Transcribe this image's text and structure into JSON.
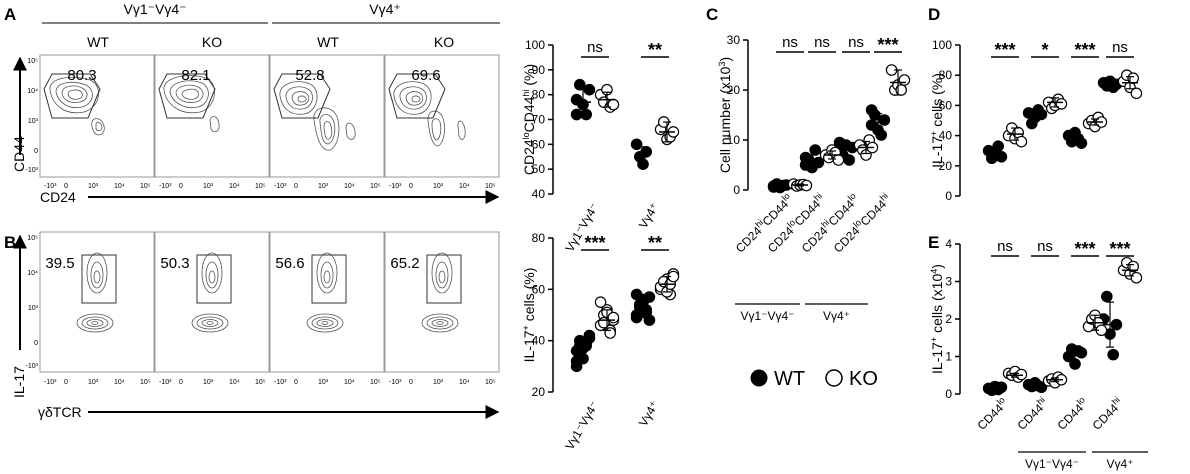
{
  "panel_labels": [
    "A",
    "B",
    "C",
    "D",
    "E"
  ],
  "flow_a": {
    "group_labels": [
      "Vγ1⁻Vγ4⁻",
      "Vγ4⁺"
    ],
    "genotype_labels": [
      "WT",
      "KO",
      "WT",
      "KO"
    ],
    "percentages": [
      "80.3",
      "82.1",
      "52.8",
      "69.6"
    ],
    "y_axis": "CD44",
    "x_axis": "CD24",
    "y_ticks": [
      "10⁵",
      "10⁴",
      "10³",
      "0",
      "-10³"
    ],
    "x_ticks": [
      "-10³",
      "0",
      "10³",
      "10⁴",
      "10⁵"
    ]
  },
  "flow_b": {
    "percentages": [
      "39.5",
      "50.3",
      "56.6",
      "65.2"
    ],
    "y_axis": "IL-17",
    "x_axis": "γδTCR",
    "y_ticks": [
      "10⁵",
      "10⁴",
      "10³",
      "0",
      "-10³"
    ],
    "x_ticks": [
      "-10³",
      "0",
      "10³",
      "10⁴",
      "10⁵"
    ]
  },
  "legend": {
    "wt": "WT",
    "ko": "KO"
  },
  "chart_data": [
    {
      "id": "A-scatter",
      "type": "scatter",
      "ylabel": "CD24loCD44hi (%)",
      "ylabel_parts": [
        "CD24",
        "lo",
        "CD44",
        "hi",
        " (%)"
      ],
      "ylim": [
        40,
        100
      ],
      "yticks": [
        "40",
        "50",
        "60",
        "70",
        "80",
        "90",
        "100"
      ],
      "groups": [
        "Vγ1⁻Vγ4⁻",
        "Vγ4⁺"
      ],
      "significance": [
        "ns",
        "**"
      ],
      "series": [
        {
          "name": "WT",
          "values": [
            [
              78,
              84,
              76,
              72,
              82,
              72
            ],
            [
              60,
              55,
              52,
              57
            ]
          ],
          "mean": [
            77,
            56
          ],
          "sd": [
            5,
            3
          ]
        },
        {
          "name": "KO",
          "values": [
            [
              80,
              77,
              82,
              75,
              76
            ],
            [
              66,
              69,
              62,
              63,
              65
            ]
          ],
          "mean": [
            78,
            65
          ],
          "sd": [
            3,
            4
          ]
        }
      ]
    },
    {
      "id": "B-scatter",
      "type": "scatter",
      "ylabel": "IL-17+ cells (%)",
      "ylabel_parts": [
        "IL-17",
        "+",
        " cells (%)",
        "",
        ""
      ],
      "ylim": [
        20,
        80
      ],
      "yticks": [
        "20",
        "40",
        "60",
        "80"
      ],
      "groups": [
        "Vγ1⁻Vγ4⁻",
        "Vγ4⁺"
      ],
      "significance": [
        "***",
        "**"
      ],
      "series": [
        {
          "name": "WT",
          "values": [
            [
              36,
              40,
              33,
              38,
              42,
              30,
              35,
              37,
              39,
              41,
              32,
              38
            ],
            [
              50,
              54,
              56,
              52,
              48,
              58,
              53,
              55,
              51,
              57,
              49,
              54
            ]
          ],
          "mean": [
            37,
            53
          ],
          "sd": [
            4,
            4
          ]
        },
        {
          "name": "KO",
          "values": [
            [
              46,
              50,
              52,
              44,
              48,
              55,
              47,
              51,
              43,
              49
            ],
            [
              60,
              62,
              64,
              58,
              66,
              61,
              63,
              59,
              62,
              65
            ]
          ],
          "mean": [
            48,
            62
          ],
          "sd": [
            4,
            3
          ]
        }
      ]
    },
    {
      "id": "C-scatter",
      "type": "scatter",
      "ylabel": "Cell number (x10³)",
      "ylabel_parts": [
        "Cell number (x10",
        "3",
        ")",
        "",
        ""
      ],
      "ylim": [
        0,
        30
      ],
      "yticks": [
        "0",
        "10",
        "20",
        "30"
      ],
      "categories": [
        "CD24hiCD44lo",
        "CD24loCD44hi",
        "CD24hiCD44lo",
        "CD24loCD44hi"
      ],
      "category_parts": [
        [
          "CD24",
          "hi",
          "CD44",
          "lo"
        ],
        [
          "CD24",
          "lo",
          "CD44",
          "hi"
        ],
        [
          "CD24",
          "hi",
          "CD44",
          "lo"
        ],
        [
          "CD24",
          "lo",
          "CD44",
          "hi"
        ]
      ],
      "groups": [
        "Vγ1⁻Vγ4⁻",
        "Vγ4⁺"
      ],
      "significance": [
        "ns",
        "ns",
        "ns",
        "***"
      ],
      "series": [
        {
          "name": "WT",
          "values": [
            [
              0.8,
              1.2,
              0.5,
              0.9,
              1.0,
              0.6
            ],
            [
              5,
              6,
              4.5,
              8,
              5.5,
              6.5
            ],
            [
              8,
              7,
              9,
              6,
              8.5,
              9.5
            ],
            [
              13,
              15,
              12,
              11,
              14,
              16
            ]
          ],
          "mean": [
            0.9,
            5.8,
            8.0,
            13.5
          ],
          "sd": [
            0.3,
            1.2,
            1.2,
            1.8
          ]
        },
        {
          "name": "KO",
          "values": [
            [
              1.2,
              0.8,
              1.0,
              1.1,
              0.9
            ],
            [
              7,
              6.5,
              8,
              7.5,
              6
            ],
            [
              9,
              8,
              7,
              10,
              8.5
            ],
            [
              24,
              20,
              21,
              20,
              22
            ]
          ],
          "mean": [
            1.0,
            7.0,
            8.5,
            21.5
          ],
          "sd": [
            0.2,
            0.8,
            1.2,
            2.5
          ]
        }
      ]
    },
    {
      "id": "D-scatter",
      "type": "scatter",
      "ylabel": "IL-17+ cells (%)",
      "ylabel_parts": [
        "IL-17",
        "+",
        " cells (%)",
        "",
        ""
      ],
      "ylim": [
        0,
        100
      ],
      "yticks": [
        "0",
        "20",
        "40",
        "60",
        "80",
        "100"
      ],
      "significance": [
        "***",
        "*",
        "***",
        "ns"
      ],
      "series": [
        {
          "name": "WT",
          "values": [
            [
              30,
              25,
              28,
              33,
              26
            ],
            [
              55,
              48,
              52,
              57,
              54
            ],
            [
              40,
              36,
              42,
              38,
              35
            ],
            [
              75,
              73,
              76,
              72,
              74
            ]
          ],
          "mean": [
            29,
            53,
            39,
            74
          ],
          "sd": [
            3,
            3,
            3,
            2
          ]
        },
        {
          "name": "KO",
          "values": [
            [
              40,
              45,
              38,
              42,
              36
            ],
            [
              62,
              58,
              60,
              64,
              61
            ],
            [
              48,
              50,
              46,
              52,
              49
            ],
            [
              76,
              80,
              72,
              78,
              68
            ]
          ],
          "mean": [
            41,
            62,
            49,
            75
          ],
          "sd": [
            4,
            3,
            2,
            4
          ]
        }
      ]
    },
    {
      "id": "E-scatter",
      "type": "scatter",
      "ylabel": "IL-17+ cells (x10⁴)",
      "ylabel_parts": [
        "IL-17",
        "+",
        " cells (x10",
        "4",
        ")"
      ],
      "ylim": [
        0,
        4
      ],
      "yticks": [
        "0",
        "1",
        "2",
        "3",
        "4"
      ],
      "categories": [
        "CD44lo",
        "CD44hi",
        "CD44lo",
        "CD44hi"
      ],
      "category_parts": [
        [
          "CD44",
          "lo",
          "",
          ""
        ],
        [
          "CD44",
          "hi",
          "",
          ""
        ],
        [
          "CD44",
          "lo",
          "",
          ""
        ],
        [
          "CD44",
          "hi",
          "",
          ""
        ]
      ],
      "groups": [
        "Vγ1⁻Vγ4⁻",
        "Vγ4⁺"
      ],
      "significance": [
        "ns",
        "ns",
        "***",
        "***"
      ],
      "series": [
        {
          "name": "WT",
          "values": [
            [
              0.15,
              0.1,
              0.2,
              0.12,
              0.18
            ],
            [
              0.25,
              0.2,
              0.3,
              0.22,
              0.18
            ],
            [
              1.0,
              1.2,
              0.8,
              1.15,
              1.1
            ],
            [
              2.0,
              2.6,
              1.6,
              1.05,
              1.85
            ]
          ],
          "mean": [
            0.15,
            0.23,
            1.05,
            1.85
          ],
          "sd": [
            0.05,
            0.05,
            0.15,
            0.6
          ]
        },
        {
          "name": "KO",
          "values": [
            [
              0.55,
              0.5,
              0.6,
              0.45,
              0.52
            ],
            [
              0.35,
              0.4,
              0.3,
              0.45,
              0.38
            ],
            [
              1.8,
              2.0,
              2.1,
              1.9,
              1.7
            ],
            [
              3.3,
              3.5,
              3.2,
              3.4,
              3.1
            ]
          ],
          "mean": [
            0.5,
            0.38,
            1.9,
            3.3
          ],
          "sd": [
            0.05,
            0.05,
            0.2,
            0.15
          ]
        }
      ]
    }
  ]
}
